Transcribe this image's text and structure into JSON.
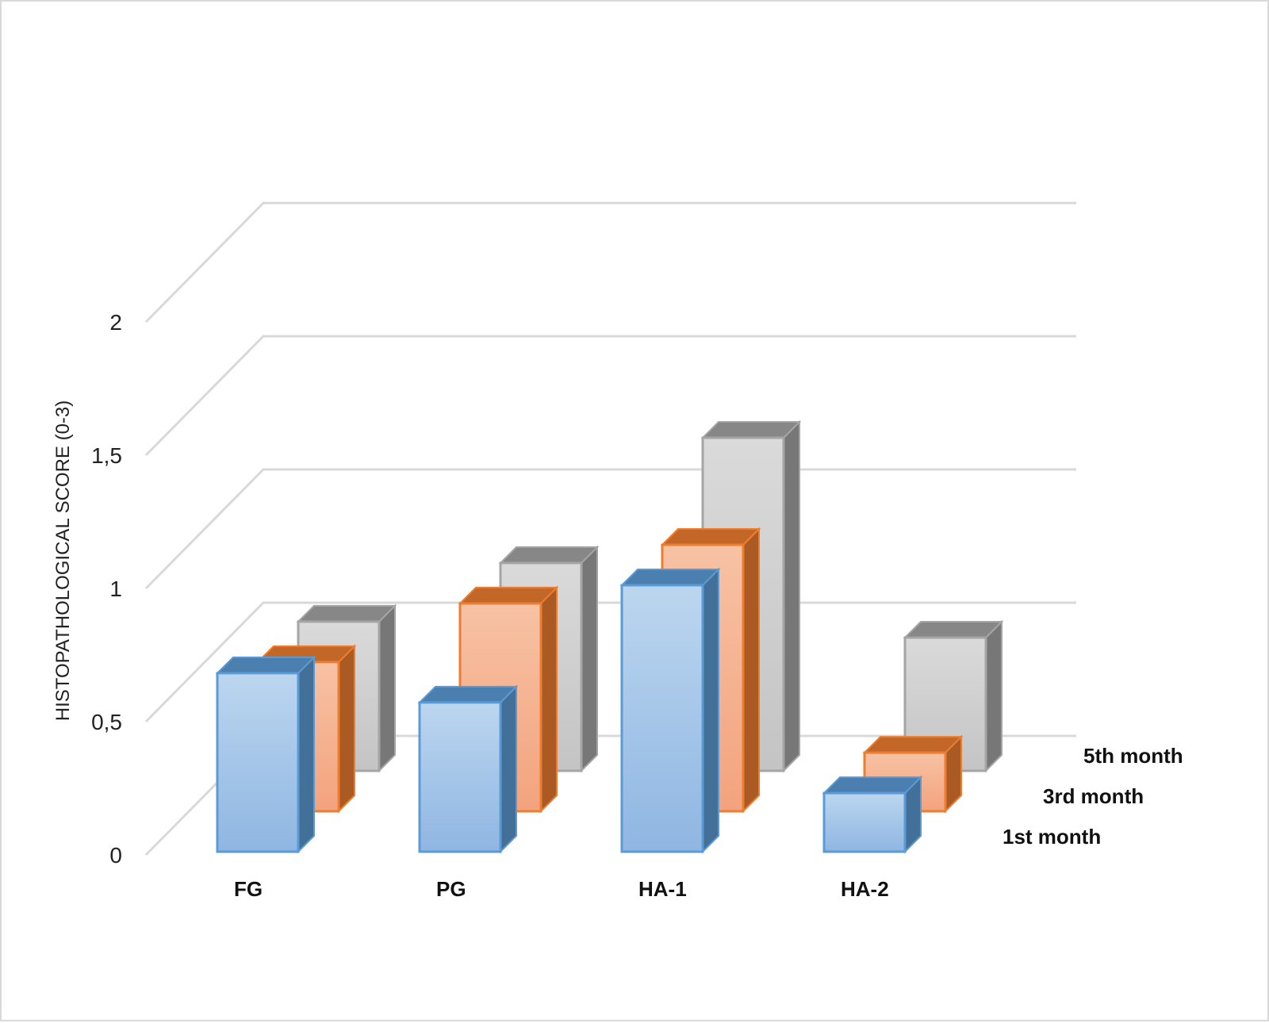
{
  "chart_data": {
    "type": "bar",
    "style": "3d-column",
    "categories": [
      "FG",
      "PG",
      "HA-1",
      "HA-2"
    ],
    "series": [
      {
        "name": "1st month",
        "values": [
          0.67,
          0.56,
          1.0,
          0.22
        ],
        "color": "#9dc3e6",
        "stroke": "#5b9bd5"
      },
      {
        "name": "3rd month",
        "values": [
          0.56,
          0.78,
          1.0,
          0.22
        ],
        "color": "#f4b183",
        "stroke": "#ed7d31"
      },
      {
        "name": "5th month",
        "values": [
          0.56,
          0.78,
          1.25,
          0.5
        ],
        "color": "#d0d0d0",
        "stroke": "#a5a5a5"
      }
    ],
    "ylabel": "HISTOPATHOLOGICAL SCORE (0-3)",
    "yticks": [
      "0",
      "0,5",
      "1",
      "1,5",
      "2"
    ],
    "ylim": [
      0,
      2
    ],
    "grid": true
  }
}
